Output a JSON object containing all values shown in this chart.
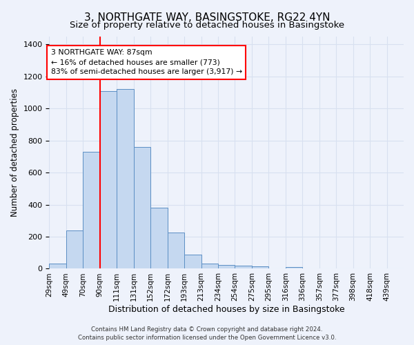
{
  "title": "3, NORTHGATE WAY, BASINGSTOKE, RG22 4YN",
  "subtitle": "Size of property relative to detached houses in Basingstoke",
  "xlabel": "Distribution of detached houses by size in Basingstoke",
  "ylabel": "Number of detached properties",
  "footer_line1": "Contains HM Land Registry data © Crown copyright and database right 2024.",
  "footer_line2": "Contains public sector information licensed under the Open Government Licence v3.0.",
  "bar_labels": [
    "29sqm",
    "49sqm",
    "70sqm",
    "90sqm",
    "111sqm",
    "131sqm",
    "152sqm",
    "172sqm",
    "193sqm",
    "213sqm",
    "234sqm",
    "254sqm",
    "275sqm",
    "295sqm",
    "316sqm",
    "336sqm",
    "357sqm",
    "377sqm",
    "398sqm",
    "418sqm",
    "439sqm"
  ],
  "bar_values": [
    30,
    240,
    730,
    1110,
    1120,
    760,
    380,
    225,
    90,
    30,
    25,
    20,
    15,
    0,
    10,
    0,
    0,
    0,
    0,
    0,
    0
  ],
  "bar_color": "#c5d8f0",
  "bar_edge_color": "#5b8ec4",
  "property_line_color": "red",
  "annotation_text": "3 NORTHGATE WAY: 87sqm\n← 16% of detached houses are smaller (773)\n83% of semi-detached houses are larger (3,917) →",
  "annotation_box_color": "red",
  "annotation_text_color": "black",
  "ylim": [
    0,
    1450
  ],
  "bin_width": 21,
  "background_color": "#eef2fb",
  "grid_color": "#d8e0f0",
  "title_fontsize": 11,
  "subtitle_fontsize": 9.5,
  "ylabel_fontsize": 8.5,
  "xlabel_fontsize": 9,
  "tick_fontsize": 7.5,
  "footer_fontsize": 6.2
}
